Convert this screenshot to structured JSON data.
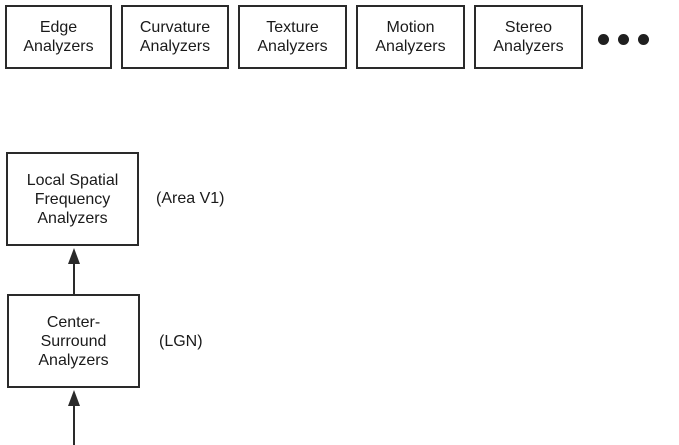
{
  "analyzers": [
    {
      "id": "edge",
      "label": "Edge\nAnalyzers"
    },
    {
      "id": "curvature",
      "label": "Curvature\nAnalyzers"
    },
    {
      "id": "texture",
      "label": "Texture\nAnalyzers"
    },
    {
      "id": "motion",
      "label": "Motion\nAnalyzers"
    },
    {
      "id": "stereo",
      "label": "Stereo\nAnalyzers"
    }
  ],
  "continuation_marker": "more-analyzers-dots",
  "stages": {
    "v1": {
      "label": "Local Spatial\nFrequency\nAnalyzers",
      "annotation": "(Area V1)"
    },
    "lgn": {
      "label": "Center-\nSurround\nAnalyzers",
      "annotation": "(LGN)"
    }
  },
  "colors": {
    "stroke": "#2a2a2a",
    "text": "#1a1a1a",
    "background": "#ffffff"
  }
}
